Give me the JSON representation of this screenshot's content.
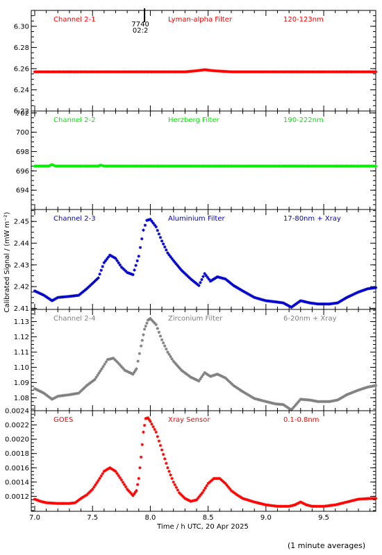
{
  "footnote": "(1 minute averages)",
  "chart_data": {
    "type": "scatter",
    "xlabel": "Time / h UTC, 20 Apr 2025",
    "ylabel": "Calibrated Signal / (mW m⁻²)",
    "xlim": [
      6.97,
      9.95
    ],
    "xticks": [
      7.0,
      7.5,
      8.0,
      8.5,
      9.0,
      9.5
    ],
    "xtick_labels": [
      "7.0",
      "7.5",
      "8.0",
      "8.5",
      "9.0",
      "9.5"
    ],
    "marker_annotation": {
      "x": 7.95,
      "lines": [
        "7740",
        "02:2"
      ]
    },
    "panels": [
      {
        "channel": "Channel 2-1",
        "filter": "Lyman-alpha Filter",
        "band": "120-123nm",
        "color": "#ff0000",
        "ylim": [
          6.22,
          6.315
        ],
        "yticks": [
          6.22,
          6.24,
          6.26,
          6.28,
          6.3
        ],
        "ytick_labels": [
          "6.22",
          "6.24",
          "6.26",
          "6.28",
          "6.30"
        ],
        "points": [
          [
            7.0,
            6.257
          ],
          [
            7.5,
            6.257
          ],
          [
            8.0,
            6.257
          ],
          [
            8.3,
            6.257
          ],
          [
            8.4,
            6.258
          ],
          [
            8.47,
            6.259
          ],
          [
            8.55,
            6.258
          ],
          [
            8.7,
            6.257
          ],
          [
            9.0,
            6.257
          ],
          [
            9.5,
            6.257
          ],
          [
            9.95,
            6.257
          ]
        ]
      },
      {
        "channel": "Channel 2-2",
        "filter": "Herzberg Filter",
        "band": "190-222nm",
        "color": "#00ee00",
        "ylim": [
          692,
          702.2
        ],
        "yticks": [
          694,
          696,
          698,
          700,
          702
        ],
        "ytick_labels": [
          "694",
          "696",
          "698",
          "700",
          "702"
        ],
        "points": [
          [
            7.0,
            696.5
          ],
          [
            7.12,
            696.5
          ],
          [
            7.15,
            696.65
          ],
          [
            7.18,
            696.5
          ],
          [
            7.55,
            696.5
          ],
          [
            7.57,
            696.6
          ],
          [
            7.6,
            696.5
          ],
          [
            8.0,
            696.5
          ],
          [
            8.5,
            696.5
          ],
          [
            9.0,
            696.5
          ],
          [
            9.5,
            696.5
          ],
          [
            9.95,
            696.5
          ]
        ]
      },
      {
        "channel": "Channel 2-3",
        "filter": "Aluminium Filter",
        "band": "17-80nm + Xray",
        "color": "#0000cc",
        "ylim": [
          2.4095,
          2.4555
        ],
        "yticks": [
          2.41,
          2.42,
          2.43,
          2.44,
          2.45
        ],
        "ytick_labels": [
          "2.41",
          "2.42",
          "2.43",
          "2.44",
          "2.45"
        ],
        "points": [
          [
            7.0,
            2.418
          ],
          [
            7.08,
            2.416
          ],
          [
            7.15,
            2.4135
          ],
          [
            7.2,
            2.415
          ],
          [
            7.3,
            2.4155
          ],
          [
            7.38,
            2.416
          ],
          [
            7.45,
            2.419
          ],
          [
            7.5,
            2.4215
          ],
          [
            7.55,
            2.424
          ],
          [
            7.6,
            2.431
          ],
          [
            7.65,
            2.4345
          ],
          [
            7.7,
            2.433
          ],
          [
            7.75,
            2.429
          ],
          [
            7.8,
            2.4265
          ],
          [
            7.85,
            2.4255
          ],
          [
            7.9,
            2.434
          ],
          [
            7.94,
            2.446
          ],
          [
            7.97,
            2.4505
          ],
          [
            8.0,
            2.451
          ],
          [
            8.05,
            2.4475
          ],
          [
            8.1,
            2.441
          ],
          [
            8.15,
            2.4355
          ],
          [
            8.2,
            2.432
          ],
          [
            8.27,
            2.4275
          ],
          [
            8.35,
            2.4235
          ],
          [
            8.42,
            2.4205
          ],
          [
            8.47,
            2.426
          ],
          [
            8.52,
            2.4225
          ],
          [
            8.58,
            2.4245
          ],
          [
            8.65,
            2.4235
          ],
          [
            8.72,
            2.4205
          ],
          [
            8.8,
            2.418
          ],
          [
            8.9,
            2.415
          ],
          [
            9.0,
            2.4135
          ],
          [
            9.08,
            2.413
          ],
          [
            9.15,
            2.4125
          ],
          [
            9.22,
            2.4105
          ],
          [
            9.3,
            2.4135
          ],
          [
            9.38,
            2.4125
          ],
          [
            9.45,
            2.412
          ],
          [
            9.55,
            2.412
          ],
          [
            9.62,
            2.4125
          ],
          [
            9.7,
            2.415
          ],
          [
            9.8,
            2.4175
          ],
          [
            9.88,
            2.419
          ],
          [
            9.95,
            2.4195
          ]
        ]
      },
      {
        "channel": "Channel 2-4",
        "filter": "Zirconium Filter",
        "band": "6-20nm + Xray",
        "color": "#808080",
        "ylim": [
          1.0715,
          1.138
        ],
        "yticks": [
          1.08,
          1.09,
          1.1,
          1.11,
          1.12,
          1.13
        ],
        "ytick_labels": [
          "1.08",
          "1.09",
          "1.10",
          "1.11",
          "1.12",
          "1.13"
        ],
        "points": [
          [
            7.0,
            1.086
          ],
          [
            7.08,
            1.083
          ],
          [
            7.15,
            1.079
          ],
          [
            7.2,
            1.081
          ],
          [
            7.3,
            1.082
          ],
          [
            7.38,
            1.083
          ],
          [
            7.45,
            1.088
          ],
          [
            7.52,
            1.092
          ],
          [
            7.58,
            1.099
          ],
          [
            7.63,
            1.105
          ],
          [
            7.68,
            1.106
          ],
          [
            7.72,
            1.103
          ],
          [
            7.78,
            1.098
          ],
          [
            7.85,
            1.0955
          ],
          [
            7.88,
            1.099
          ],
          [
            7.92,
            1.114
          ],
          [
            7.95,
            1.125
          ],
          [
            7.98,
            1.131
          ],
          [
            8.0,
            1.132
          ],
          [
            8.05,
            1.128
          ],
          [
            8.1,
            1.118
          ],
          [
            8.15,
            1.11
          ],
          [
            8.2,
            1.104
          ],
          [
            8.27,
            1.098
          ],
          [
            8.35,
            1.0935
          ],
          [
            8.42,
            1.091
          ],
          [
            8.47,
            1.0965
          ],
          [
            8.52,
            1.094
          ],
          [
            8.58,
            1.0955
          ],
          [
            8.65,
            1.093
          ],
          [
            8.72,
            1.088
          ],
          [
            8.8,
            1.084
          ],
          [
            8.9,
            1.0795
          ],
          [
            9.0,
            1.0775
          ],
          [
            9.08,
            1.076
          ],
          [
            9.15,
            1.0755
          ],
          [
            9.22,
            1.072
          ],
          [
            9.3,
            1.079
          ],
          [
            9.38,
            1.0785
          ],
          [
            9.45,
            1.0775
          ],
          [
            9.55,
            1.0775
          ],
          [
            9.62,
            1.0785
          ],
          [
            9.7,
            1.082
          ],
          [
            9.8,
            1.085
          ],
          [
            9.88,
            1.087
          ],
          [
            9.95,
            1.088
          ]
        ]
      },
      {
        "channel": "GOES",
        "filter": "Xray Sensor",
        "band": "0.1-0.8nm",
        "color": "#ff0000",
        "ylim": [
          0.00099,
          0.0024
        ],
        "yticks": [
          0.0012,
          0.0014,
          0.0016,
          0.0018,
          0.002,
          0.0022,
          0.0024
        ],
        "ytick_labels": [
          "0.0012",
          "0.0014",
          "0.0016",
          "0.0018",
          "0.0020",
          "0.0022",
          "0.0024"
        ],
        "points": [
          [
            7.0,
            0.00116
          ],
          [
            7.05,
            0.00113
          ],
          [
            7.1,
            0.00111
          ],
          [
            7.2,
            0.0011
          ],
          [
            7.3,
            0.0011
          ],
          [
            7.35,
            0.00111
          ],
          [
            7.4,
            0.00117
          ],
          [
            7.45,
            0.00122
          ],
          [
            7.5,
            0.0013
          ],
          [
            7.55,
            0.00142
          ],
          [
            7.6,
            0.00155
          ],
          [
            7.65,
            0.0016
          ],
          [
            7.7,
            0.00155
          ],
          [
            7.75,
            0.00143
          ],
          [
            7.8,
            0.0013
          ],
          [
            7.85,
            0.00121
          ],
          [
            7.88,
            0.00128
          ],
          [
            7.9,
            0.00145
          ],
          [
            7.92,
            0.00175
          ],
          [
            7.94,
            0.0021
          ],
          [
            7.96,
            0.00229
          ],
          [
            7.98,
            0.0023
          ],
          [
            8.0,
            0.00225
          ],
          [
            8.05,
            0.0021
          ],
          [
            8.1,
            0.00185
          ],
          [
            8.15,
            0.0016
          ],
          [
            8.2,
            0.0014
          ],
          [
            8.25,
            0.00125
          ],
          [
            8.3,
            0.00117
          ],
          [
            8.35,
            0.00113
          ],
          [
            8.4,
            0.00115
          ],
          [
            8.45,
            0.00125
          ],
          [
            8.5,
            0.00138
          ],
          [
            8.55,
            0.00145
          ],
          [
            8.6,
            0.00145
          ],
          [
            8.65,
            0.00138
          ],
          [
            8.7,
            0.00128
          ],
          [
            8.75,
            0.00122
          ],
          [
            8.8,
            0.00117
          ],
          [
            8.9,
            0.00112
          ],
          [
            9.0,
            0.00108
          ],
          [
            9.1,
            0.00106
          ],
          [
            9.2,
            0.00106
          ],
          [
            9.25,
            0.00108
          ],
          [
            9.3,
            0.00112
          ],
          [
            9.35,
            0.00108
          ],
          [
            9.4,
            0.00106
          ],
          [
            9.5,
            0.00106
          ],
          [
            9.6,
            0.00108
          ],
          [
            9.7,
            0.00112
          ],
          [
            9.8,
            0.00116
          ],
          [
            9.9,
            0.00117
          ],
          [
            9.95,
            0.00117
          ]
        ]
      }
    ]
  }
}
